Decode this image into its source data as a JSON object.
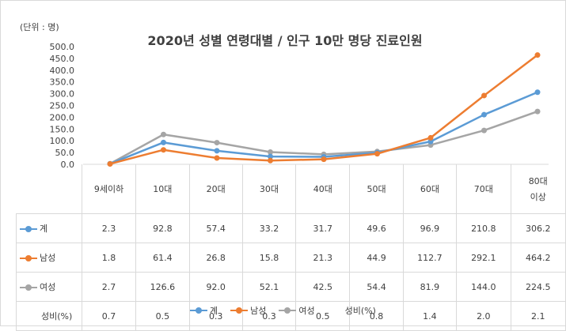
{
  "chart_data": {
    "type": "line",
    "title": "2020년 성별 연령대별 / 인구 10만 명당 진료인원",
    "unit_label": "(단위 : 명)",
    "categories": [
      "9세이하",
      "10대",
      "20대",
      "30대",
      "40대",
      "50대",
      "60대",
      "70대",
      "80대 이상"
    ],
    "category_lines": [
      [
        "9세이하"
      ],
      [
        "10대"
      ],
      [
        "20대"
      ],
      [
        "30대"
      ],
      [
        "40대"
      ],
      [
        "50대"
      ],
      [
        "60대"
      ],
      [
        "70대"
      ],
      [
        "80대",
        "이상"
      ]
    ],
    "ylim": [
      0,
      500
    ],
    "yticks": [
      "0.0",
      "50.0",
      "100.0",
      "150.0",
      "200.0",
      "250.0",
      "300.0",
      "350.0",
      "400.0",
      "450.0",
      "500.0"
    ],
    "grid": false,
    "legend_position": "bottom",
    "series": [
      {
        "name": "계",
        "color": "#5b9bd5",
        "values": [
          2.3,
          92.8,
          57.4,
          33.2,
          31.7,
          49.6,
          96.9,
          210.8,
          306.2
        ],
        "labels": [
          "2.3",
          "92.8",
          "57.4",
          "33.2",
          "31.7",
          "49.6",
          "96.9",
          "210.8",
          "306.2"
        ]
      },
      {
        "name": "남성",
        "color": "#ed7d31",
        "values": [
          1.8,
          61.4,
          26.8,
          15.8,
          21.3,
          44.9,
          112.7,
          292.1,
          464.2
        ],
        "labels": [
          "1.8",
          "61.4",
          "26.8",
          "15.8",
          "21.3",
          "44.9",
          "112.7",
          "292.1",
          "464.2"
        ]
      },
      {
        "name": "여성",
        "color": "#a5a5a5",
        "values": [
          2.7,
          126.6,
          92.0,
          52.1,
          42.5,
          54.4,
          81.9,
          144.0,
          224.5
        ],
        "labels": [
          "2.7",
          "126.6",
          "92.0",
          "52.1",
          "42.5",
          "54.4",
          "81.9",
          "144.0",
          "224.5"
        ]
      },
      {
        "name": "성비(%)",
        "color": null,
        "values": [
          0.7,
          0.5,
          0.3,
          0.3,
          0.5,
          0.8,
          1.4,
          2.0,
          2.1
        ],
        "labels": [
          "0.7",
          "0.5",
          "0.3",
          "0.3",
          "0.5",
          "0.8",
          "1.4",
          "2.0",
          "2.1"
        ]
      }
    ]
  }
}
